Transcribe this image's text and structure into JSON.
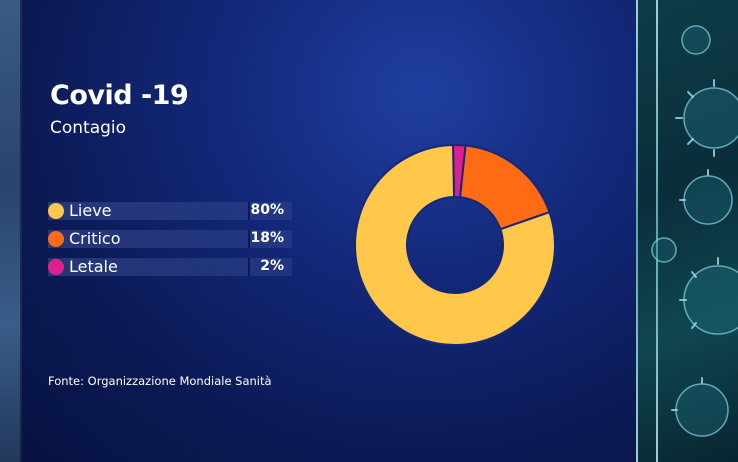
{
  "title": "Covid -19",
  "subtitle": "Contagio",
  "source": "Fonte: Organizzazione Mondiale Sanità",
  "legend": [
    {
      "label": "Lieve",
      "value": "80%",
      "color": "#ffc84a"
    },
    {
      "label": "Critico",
      "value": "18%",
      "color": "#ff6b14"
    },
    {
      "label": "Letale",
      "value": "2%",
      "color": "#e01f8f"
    }
  ],
  "chart_data": {
    "type": "pie",
    "title": "Covid -19",
    "subtitle": "Contagio",
    "donut": true,
    "categories": [
      "Lieve",
      "Critico",
      "Letale"
    ],
    "values": [
      80,
      18,
      2
    ],
    "colors": [
      "#ffc84a",
      "#ff6b14",
      "#e01f8f"
    ],
    "legend_position": "left"
  }
}
